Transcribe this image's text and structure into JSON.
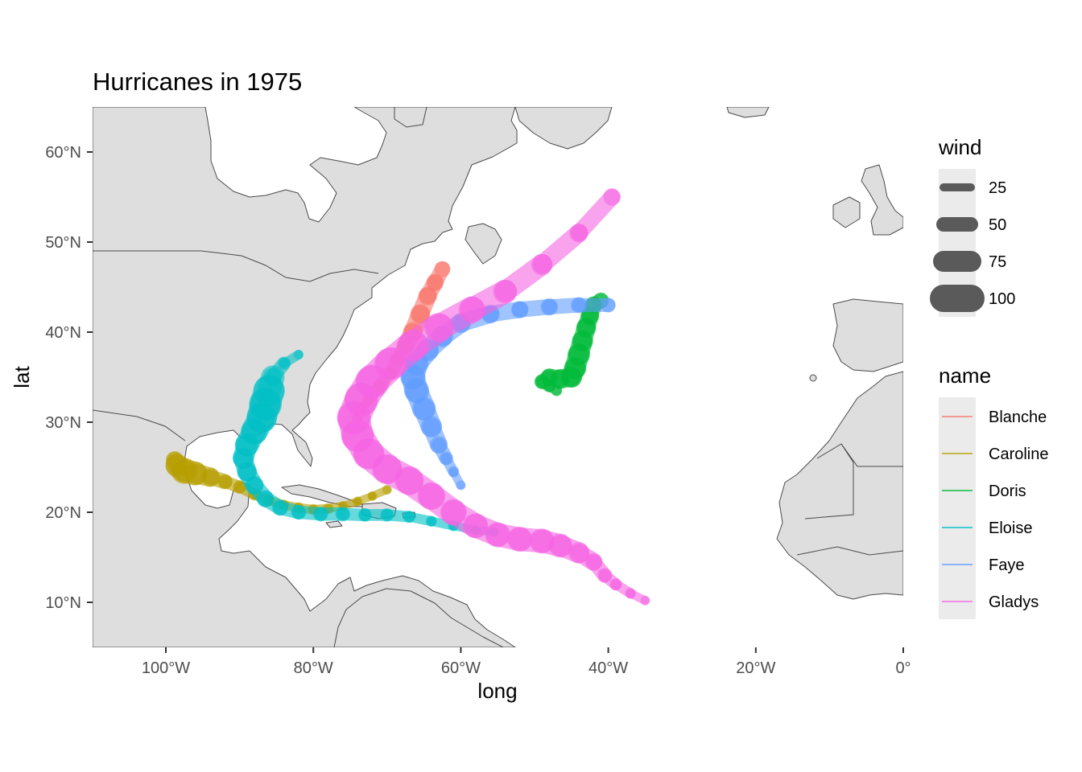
{
  "chart_data": {
    "type": "map",
    "title": "Hurricanes in 1975",
    "xlabel": "long",
    "ylabel": "lat",
    "xlim": [
      -110,
      0
    ],
    "ylim": [
      5,
      65
    ],
    "x_ticks": [
      {
        "value": -100,
        "label": "100°W"
      },
      {
        "value": -80,
        "label": "80°W"
      },
      {
        "value": -60,
        "label": "60°W"
      },
      {
        "value": -40,
        "label": "40°W"
      },
      {
        "value": -20,
        "label": "20°W"
      },
      {
        "value": 0,
        "label": "0°"
      }
    ],
    "y_ticks": [
      {
        "value": 10,
        "label": "10°N"
      },
      {
        "value": 20,
        "label": "20°N"
      },
      {
        "value": 30,
        "label": "30°N"
      },
      {
        "value": 40,
        "label": "40°N"
      },
      {
        "value": 50,
        "label": "50°N"
      },
      {
        "value": 60,
        "label": "60°N"
      }
    ],
    "land_color": "#dedede",
    "legend_position": "right",
    "legend_size": {
      "title": "wind",
      "entries": [
        {
          "value": 25,
          "label": "25"
        },
        {
          "value": 50,
          "label": "50"
        },
        {
          "value": 75,
          "label": "75"
        },
        {
          "value": 100,
          "label": "100"
        }
      ]
    },
    "legend_color": {
      "title": "name",
      "entries": [
        {
          "name": "Blanche",
          "color": "#F8766D"
        },
        {
          "name": "Caroline",
          "color": "#B79F00"
        },
        {
          "name": "Doris",
          "color": "#00BA38"
        },
        {
          "name": "Eloise",
          "color": "#00BFC4"
        },
        {
          "name": "Faye",
          "color": "#619CFF"
        },
        {
          "name": "Gladys",
          "color": "#F564E3"
        }
      ]
    },
    "series": [
      {
        "name": "Blanche",
        "points": [
          [
            -74.0,
            30.5,
            30
          ],
          [
            -73.5,
            31.5,
            30
          ],
          [
            -72.5,
            32.5,
            35
          ],
          [
            -71.0,
            34.0,
            40
          ],
          [
            -69.5,
            35.5,
            45
          ],
          [
            -68.5,
            37.0,
            50
          ],
          [
            -67.5,
            38.5,
            55
          ],
          [
            -66.5,
            40.0,
            65
          ],
          [
            -65.5,
            42.0,
            65
          ],
          [
            -64.5,
            44.0,
            60
          ],
          [
            -63.5,
            45.5,
            55
          ],
          [
            -62.5,
            47.0,
            50
          ]
        ]
      },
      {
        "name": "Caroline",
        "points": [
          [
            -70.0,
            22.5,
            25
          ],
          [
            -72.0,
            21.8,
            25
          ],
          [
            -74.0,
            21.2,
            25
          ],
          [
            -76.0,
            20.7,
            25
          ],
          [
            -78.0,
            20.4,
            30
          ],
          [
            -80.0,
            20.3,
            30
          ],
          [
            -82.0,
            20.5,
            30
          ],
          [
            -84.0,
            20.8,
            30
          ],
          [
            -86.0,
            21.3,
            30
          ],
          [
            -88.0,
            22.0,
            35
          ],
          [
            -90.0,
            22.8,
            40
          ],
          [
            -92.0,
            23.4,
            45
          ],
          [
            -94.0,
            23.9,
            60
          ],
          [
            -96.0,
            24.3,
            80
          ],
          [
            -97.5,
            24.6,
            90
          ],
          [
            -98.5,
            25.2,
            75
          ],
          [
            -98.8,
            25.8,
            50
          ]
        ]
      },
      {
        "name": "Doris",
        "points": [
          [
            -47.0,
            33.5,
            30
          ],
          [
            -48.0,
            34.0,
            35
          ],
          [
            -49.0,
            34.5,
            45
          ],
          [
            -48.0,
            35.0,
            55
          ],
          [
            -46.5,
            34.8,
            65
          ],
          [
            -45.0,
            35.0,
            70
          ],
          [
            -44.5,
            36.0,
            75
          ],
          [
            -44.0,
            37.5,
            75
          ],
          [
            -43.5,
            39.0,
            70
          ],
          [
            -43.0,
            40.5,
            65
          ],
          [
            -42.5,
            41.8,
            60
          ],
          [
            -42.0,
            43.0,
            55
          ],
          [
            -41.0,
            43.5,
            50
          ]
        ]
      },
      {
        "name": "Eloise",
        "points": [
          [
            -55.5,
            17.8,
            25
          ],
          [
            -58.0,
            18.0,
            25
          ],
          [
            -61.0,
            18.5,
            30
          ],
          [
            -64.0,
            19.0,
            30
          ],
          [
            -67.0,
            19.5,
            35
          ],
          [
            -70.0,
            19.7,
            40
          ],
          [
            -73.0,
            19.7,
            40
          ],
          [
            -76.0,
            19.8,
            45
          ],
          [
            -79.0,
            19.8,
            45
          ],
          [
            -82.0,
            20.0,
            45
          ],
          [
            -84.5,
            20.5,
            50
          ],
          [
            -86.5,
            21.5,
            55
          ],
          [
            -88.0,
            23.0,
            60
          ],
          [
            -89.0,
            24.5,
            65
          ],
          [
            -89.5,
            26.0,
            70
          ],
          [
            -89.0,
            27.5,
            80
          ],
          [
            -88.0,
            29.0,
            90
          ],
          [
            -87.0,
            30.5,
            105
          ],
          [
            -86.5,
            32.0,
            115
          ],
          [
            -86.0,
            33.5,
            110
          ],
          [
            -85.5,
            35.0,
            60
          ],
          [
            -84.0,
            36.5,
            35
          ],
          [
            -82.0,
            37.5,
            25
          ]
        ]
      },
      {
        "name": "Faye",
        "points": [
          [
            -60.0,
            23.0,
            25
          ],
          [
            -61.0,
            24.5,
            30
          ],
          [
            -62.0,
            26.0,
            40
          ],
          [
            -63.0,
            27.5,
            55
          ],
          [
            -64.0,
            29.5,
            70
          ],
          [
            -65.0,
            31.5,
            80
          ],
          [
            -66.0,
            33.5,
            85
          ],
          [
            -66.5,
            35.0,
            85
          ],
          [
            -66.0,
            36.5,
            80
          ],
          [
            -64.5,
            38.0,
            75
          ],
          [
            -62.5,
            39.5,
            70
          ],
          [
            -60.0,
            41.0,
            65
          ],
          [
            -56.0,
            42.0,
            60
          ],
          [
            -52.0,
            42.5,
            55
          ],
          [
            -48.0,
            42.8,
            55
          ],
          [
            -44.0,
            43.0,
            50
          ],
          [
            -40.0,
            43.0,
            45
          ]
        ]
      },
      {
        "name": "Gladys",
        "points": [
          [
            -35.0,
            10.2,
            25
          ],
          [
            -37.0,
            11.0,
            30
          ],
          [
            -39.0,
            12.0,
            35
          ],
          [
            -40.5,
            13.0,
            45
          ],
          [
            -42.0,
            14.5,
            55
          ],
          [
            -44.0,
            15.5,
            70
          ],
          [
            -46.5,
            16.3,
            80
          ],
          [
            -49.0,
            16.8,
            85
          ],
          [
            -52.0,
            17.0,
            85
          ],
          [
            -55.0,
            17.5,
            85
          ],
          [
            -58.0,
            18.5,
            85
          ],
          [
            -61.0,
            20.0,
            90
          ],
          [
            -64.0,
            21.8,
            95
          ],
          [
            -67.0,
            23.5,
            100
          ],
          [
            -70.0,
            24.8,
            105
          ],
          [
            -72.5,
            26.5,
            110
          ],
          [
            -74.0,
            28.5,
            115
          ],
          [
            -74.5,
            30.5,
            120
          ],
          [
            -73.5,
            32.5,
            120
          ],
          [
            -72.0,
            34.5,
            120
          ],
          [
            -69.5,
            36.5,
            115
          ],
          [
            -66.5,
            38.5,
            110
          ],
          [
            -63.0,
            40.5,
            100
          ],
          [
            -58.5,
            42.5,
            90
          ],
          [
            -54.0,
            44.5,
            80
          ],
          [
            -49.0,
            47.5,
            70
          ],
          [
            -44.0,
            51.0,
            60
          ],
          [
            -39.5,
            55.0,
            55
          ]
        ]
      }
    ]
  }
}
